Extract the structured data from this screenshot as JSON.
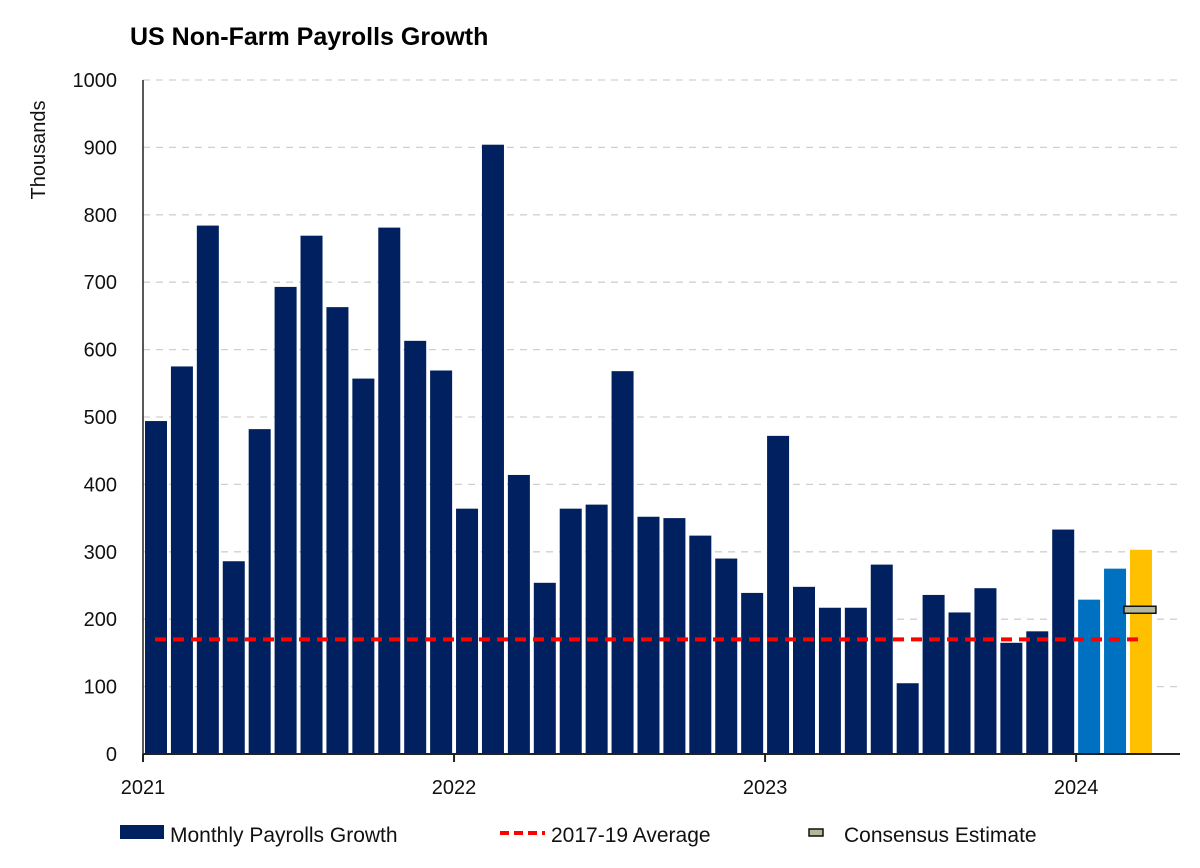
{
  "chart_data": {
    "type": "bar",
    "title": "US Non-Farm Payrolls Growth",
    "ylabel": "Thousands",
    "xlabel": "",
    "ylim": [
      0,
      1000
    ],
    "yticks": [
      0,
      100,
      200,
      300,
      400,
      500,
      600,
      700,
      800,
      900,
      1000
    ],
    "xtick_labels": [
      "2021",
      "2022",
      "2023",
      "2024"
    ],
    "grid": "horizontal dashed",
    "legend_placement": "bottom",
    "start_month": "2021-01",
    "series": [
      {
        "name": "Monthly Payrolls Growth",
        "color": "#002060",
        "highlight_colors": {
          "2024-01": "#0070C0",
          "2024-02": "#0070C0",
          "2024-03": "#FFC000"
        },
        "categories": [
          "2021-01",
          "2021-02",
          "2021-03",
          "2021-04",
          "2021-05",
          "2021-06",
          "2021-07",
          "2021-08",
          "2021-09",
          "2021-10",
          "2021-11",
          "2021-12",
          "2022-01",
          "2022-02",
          "2022-03",
          "2022-04",
          "2022-05",
          "2022-06",
          "2022-07",
          "2022-08",
          "2022-09",
          "2022-10",
          "2022-11",
          "2022-12",
          "2023-01",
          "2023-02",
          "2023-03",
          "2023-04",
          "2023-05",
          "2023-06",
          "2023-07",
          "2023-08",
          "2023-09",
          "2023-10",
          "2023-11",
          "2023-12",
          "2024-01",
          "2024-02",
          "2024-03"
        ],
        "values": [
          494,
          575,
          784,
          286,
          482,
          693,
          769,
          663,
          557,
          781,
          613,
          569,
          364,
          904,
          414,
          254,
          364,
          370,
          568,
          352,
          350,
          324,
          290,
          239,
          472,
          248,
          217,
          217,
          281,
          105,
          236,
          210,
          246,
          165,
          182,
          333,
          229,
          275,
          303
        ]
      },
      {
        "name": "2017-19 Average",
        "type": "line",
        "color": "#FF0000",
        "value": 170
      },
      {
        "name": "Consensus Estimate",
        "type": "marker",
        "color": "#B4B89A",
        "category": "2024-03",
        "value": 214
      }
    ]
  }
}
